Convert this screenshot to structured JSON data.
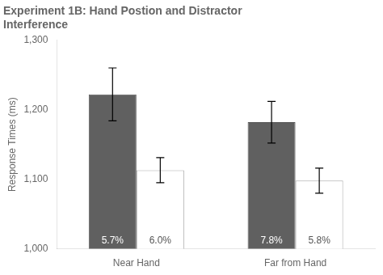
{
  "chart_data": {
    "type": "bar",
    "title": "Experiment 1B: Hand Postion and Distractor\nInterference",
    "ylabel": "Response Times (ms)",
    "categories": [
      "Near Hand",
      "Far from Hand"
    ],
    "series": [
      {
        "color": "#606060",
        "values": [
          1222,
          1182
        ],
        "errors": [
          38,
          30
        ],
        "annotations": [
          "5.7%",
          "7.8%"
        ]
      },
      {
        "color": "#ffffff",
        "values": [
          1113,
          1098
        ],
        "errors": [
          18,
          18
        ],
        "annotations": [
          "6.0%",
          "5.8%"
        ]
      }
    ],
    "ylim": [
      1000,
      1300
    ],
    "yticks": [
      1000,
      1100,
      1200,
      1300
    ],
    "grid": false
  }
}
